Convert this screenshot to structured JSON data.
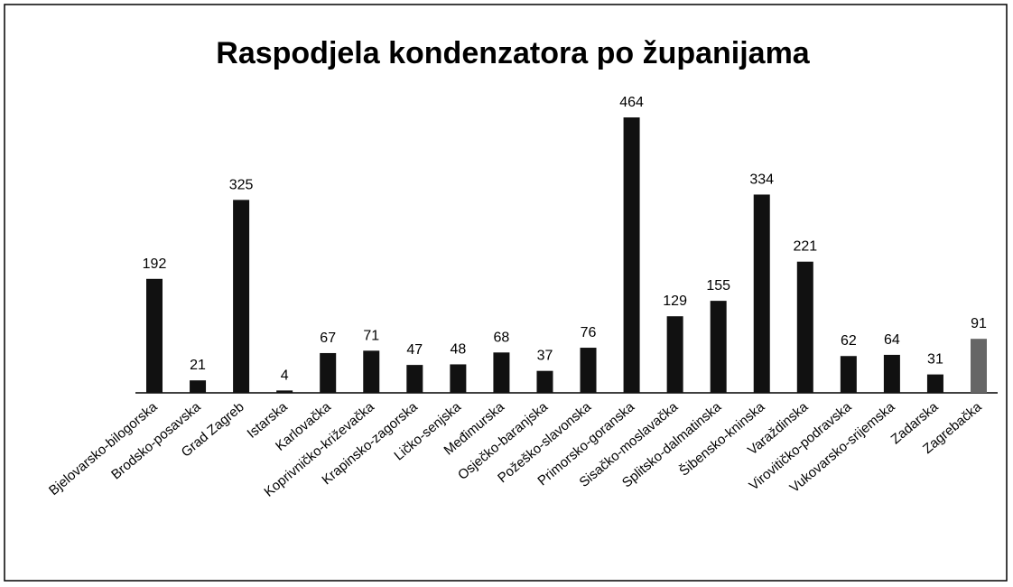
{
  "chart_data": {
    "type": "bar",
    "title": "Raspodjela kondenzatora po županijama",
    "categories": [
      "Bjelovarsko-bilogorska",
      "Brodsko-posavska",
      "Grad Zagreb",
      "Istarska",
      "Karlovačka",
      "Koprivničko-križevačka",
      "Krapinsko-zagorska",
      "Ličko-senjska",
      "Međimurska",
      "Osječko-baranjska",
      "Požeško-slavonska",
      "Primorsko-goranska",
      "Sisačko-moslavačka",
      "Splitsko-dalmatinska",
      "Šibensko-kninska",
      "Varaždinska",
      "Virovitičko-podravska",
      "Vukovarsko-srijemska",
      "Zadarska",
      "Zagrebačka"
    ],
    "values": [
      192,
      21,
      325,
      4,
      67,
      71,
      47,
      48,
      68,
      37,
      76,
      464,
      129,
      155,
      334,
      221,
      62,
      64,
      31,
      91
    ],
    "colors": [
      "#111111",
      "#111111",
      "#111111",
      "#111111",
      "#111111",
      "#111111",
      "#111111",
      "#111111",
      "#111111",
      "#111111",
      "#111111",
      "#111111",
      "#111111",
      "#111111",
      "#111111",
      "#111111",
      "#111111",
      "#111111",
      "#111111",
      "#666666"
    ]
  }
}
